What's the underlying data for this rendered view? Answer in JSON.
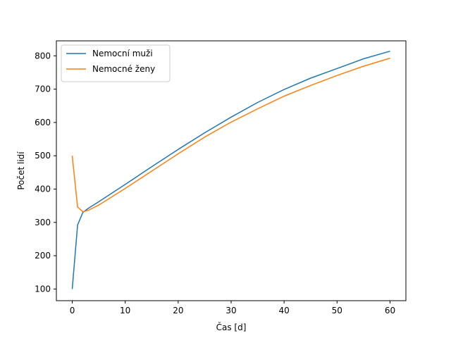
{
  "chart_data": {
    "type": "line",
    "title": "",
    "xlabel": "Čas [d]",
    "ylabel": "Počet lidí",
    "xlim": [
      -3,
      63
    ],
    "ylim": [
      65,
      845
    ],
    "xticks": [
      0,
      10,
      20,
      30,
      40,
      50,
      60
    ],
    "yticks": [
      100,
      200,
      300,
      400,
      500,
      600,
      700,
      800
    ],
    "grid": false,
    "legend_position": "top-left",
    "series": [
      {
        "name": "Nemocní muži",
        "color": "#1f77b4",
        "x": [
          0,
          1,
          2,
          3,
          5,
          10,
          15,
          20,
          25,
          30,
          35,
          40,
          45,
          50,
          55,
          60
        ],
        "y": [
          100,
          292,
          330,
          342,
          362,
          414,
          467,
          519,
          569,
          616,
          660,
          699,
          733,
          762,
          791,
          814
        ]
      },
      {
        "name": "Nemocné ženy",
        "color": "#ff7f0e",
        "x": [
          0,
          1,
          2,
          3,
          5,
          10,
          15,
          20,
          25,
          30,
          35,
          40,
          45,
          50,
          55,
          60
        ],
        "y": [
          500,
          346,
          332,
          336,
          352,
          402,
          454,
          506,
          556,
          601,
          641,
          679,
          711,
          741,
          769,
          793
        ]
      }
    ]
  }
}
